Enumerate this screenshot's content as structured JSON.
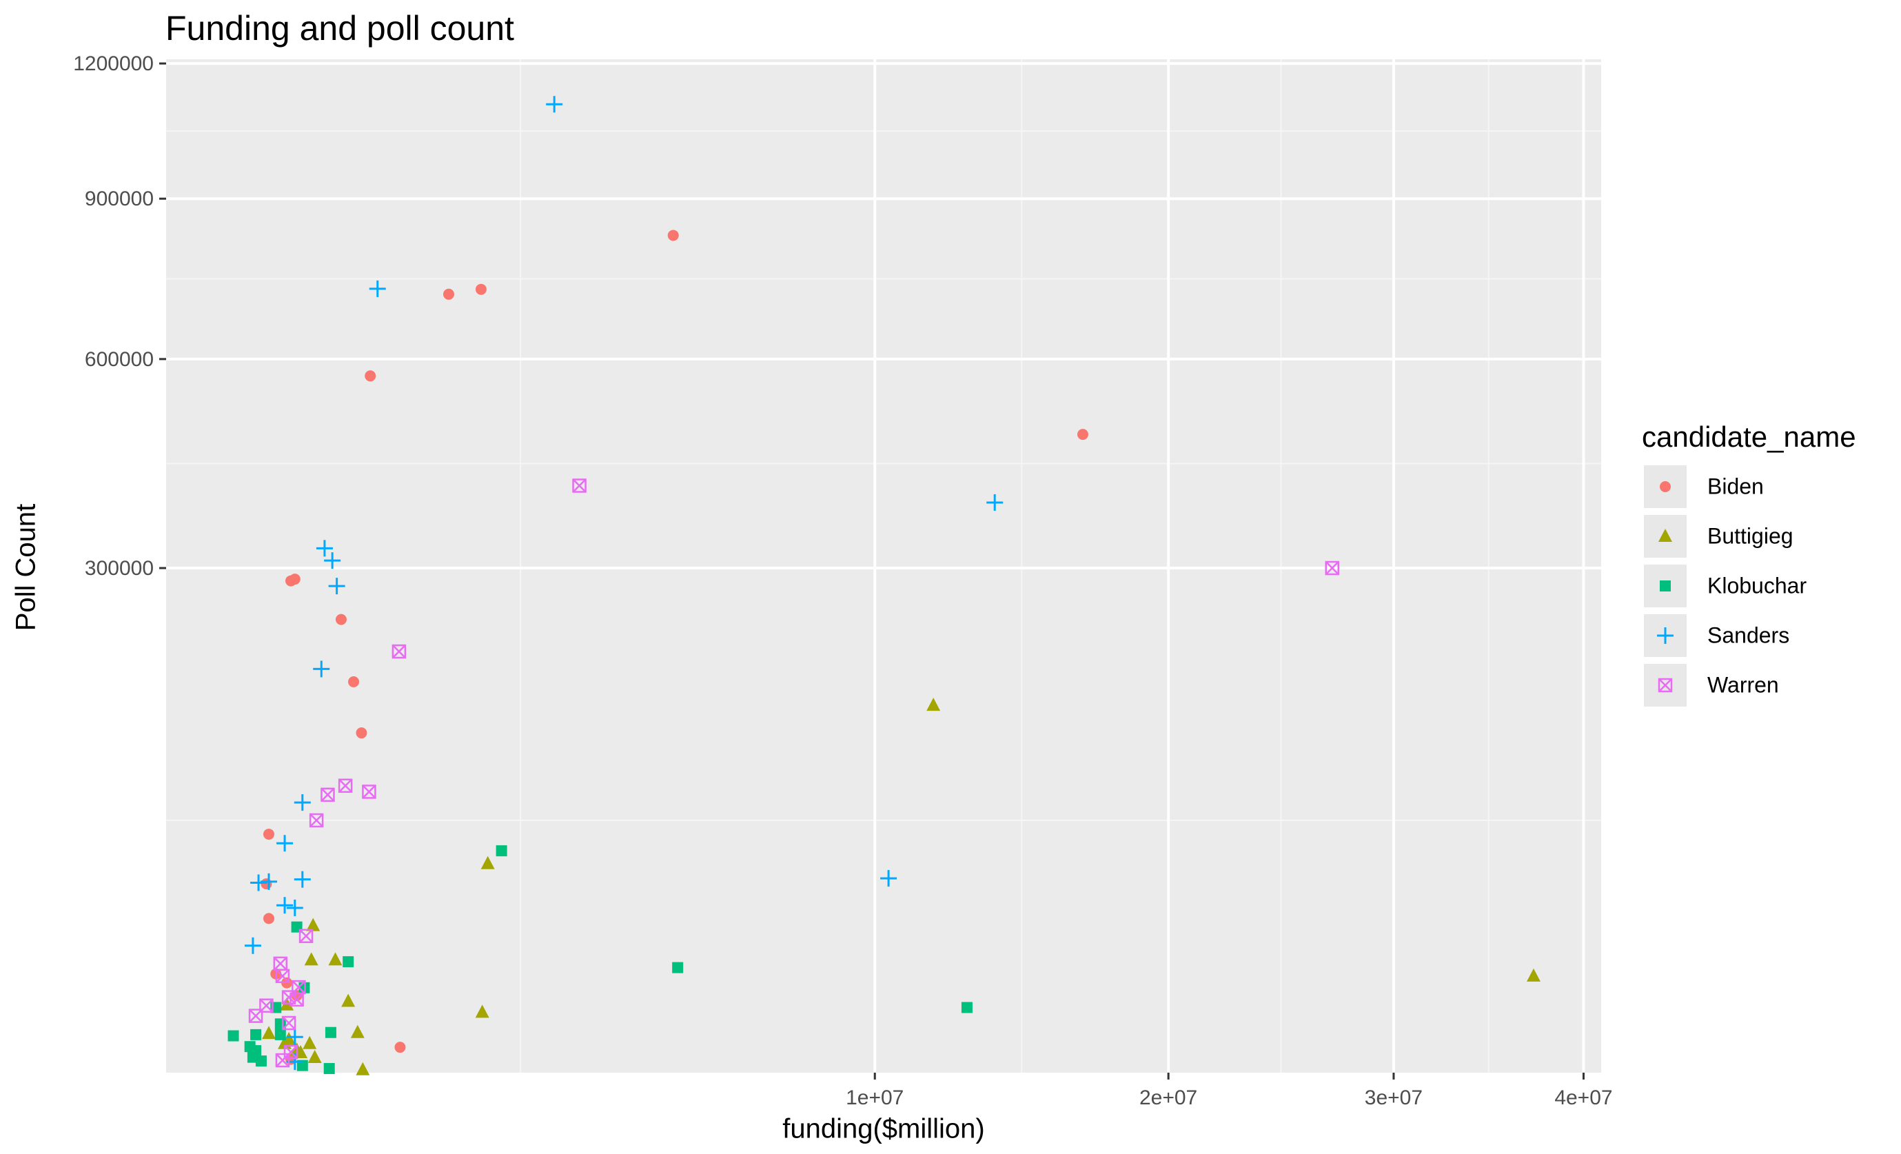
{
  "chart_data": {
    "type": "scatter",
    "title": "Funding and poll count",
    "xlabel": "funding($million)",
    "ylabel": "Poll Count",
    "x_scale": "sqrt",
    "y_scale": "sqrt",
    "xlim": [
      0,
      41000000
    ],
    "ylim": [
      0,
      1210000
    ],
    "x_ticks": [
      {
        "value": 10000000,
        "label": "1e+07"
      },
      {
        "value": 20000000,
        "label": "2e+07"
      },
      {
        "value": 30000000,
        "label": "3e+07"
      },
      {
        "value": 40000000,
        "label": "4e+07"
      }
    ],
    "y_ticks": [
      {
        "value": 300000,
        "label": "300000"
      },
      {
        "value": 600000,
        "label": "600000"
      },
      {
        "value": 900000,
        "label": "900000"
      },
      {
        "value": 1200000,
        "label": "1200000"
      }
    ],
    "grid": true,
    "background": "#ebebeb",
    "legend": {
      "title": "candidate_name",
      "position": "right"
    },
    "series": [
      {
        "name": "Biden",
        "color": "#F8766D",
        "shape": "circle",
        "points": [
          [
            5120000,
            826000
          ],
          [
            16730000,
            480000
          ],
          [
            1975000,
            723000
          ],
          [
            1590000,
            714000
          ],
          [
            830000,
            572000
          ],
          [
            330000,
            287000
          ],
          [
            310000,
            285000
          ],
          [
            610000,
            242000
          ],
          [
            700000,
            180000
          ],
          [
            760000,
            136000
          ],
          [
            210000,
            67000
          ],
          [
            200000,
            42000
          ],
          [
            210000,
            28000
          ],
          [
            240000,
            11500
          ],
          [
            290000,
            9500
          ],
          [
            340000,
            7000
          ],
          [
            1090000,
            760
          ],
          [
            310000,
            210
          ]
        ]
      },
      {
        "name": "Buttigieg",
        "color": "#A3A500",
        "shape": "triangle",
        "points": [
          [
            11720000,
            159000
          ],
          [
            37230000,
            11000
          ],
          [
            2060000,
            51500
          ],
          [
            1990000,
            4300
          ],
          [
            430000,
            25500
          ],
          [
            420000,
            15000
          ],
          [
            570000,
            15000
          ],
          [
            660000,
            6000
          ],
          [
            290000,
            5400
          ],
          [
            730000,
            1900
          ],
          [
            210000,
            1800
          ],
          [
            300000,
            1300
          ],
          [
            280000,
            1000
          ],
          [
            410000,
            1000
          ],
          [
            340000,
            600
          ],
          [
            360000,
            470
          ],
          [
            440000,
            270
          ],
          [
            770000,
            10
          ]
        ]
      },
      {
        "name": "Klobuchar",
        "color": "#00BF7D",
        "shape": "square",
        "points": [
          [
            2240000,
            58000
          ],
          [
            5210000,
            13000
          ],
          [
            12770000,
            5000
          ],
          [
            660000,
            14500
          ],
          [
            340000,
            25000
          ],
          [
            380000,
            8500
          ],
          [
            240000,
            5000
          ],
          [
            260000,
            2800
          ],
          [
            540000,
            1900
          ],
          [
            90000,
            1600
          ],
          [
            160000,
            1700
          ],
          [
            260000,
            1700
          ],
          [
            140000,
            800
          ],
          [
            160000,
            570
          ],
          [
            150000,
            280
          ],
          [
            180000,
            160
          ],
          [
            370000,
            60
          ],
          [
            530000,
            20
          ]
        ]
      },
      {
        "name": "Sanders",
        "color": "#00A9FF",
        "shape": "plus",
        "points": [
          [
            3000000,
            1105000
          ],
          [
            13670000,
            383000
          ],
          [
            10390000,
            44500
          ],
          [
            890000,
            724000
          ],
          [
            500000,
            324000
          ],
          [
            550000,
            309000
          ],
          [
            580000,
            279000
          ],
          [
            480000,
            192000
          ],
          [
            370000,
            86000
          ],
          [
            280000,
            62000
          ],
          [
            370000,
            44000
          ],
          [
            210000,
            43000
          ],
          [
            170000,
            42500
          ],
          [
            280000,
            33000
          ],
          [
            330000,
            32000
          ],
          [
            150000,
            19000
          ],
          [
            330000,
            1500
          ],
          [
            330000,
            140
          ]
        ]
      },
      {
        "name": "Warren",
        "color": "#E76BF3",
        "shape": "square-cross",
        "points": [
          [
            3400000,
            406000
          ],
          [
            27070000,
            300000
          ],
          [
            1080000,
            209000
          ],
          [
            820000,
            93000
          ],
          [
            640000,
            97000
          ],
          [
            520000,
            91000
          ],
          [
            450000,
            75000
          ],
          [
            390000,
            22000
          ],
          [
            260000,
            14000
          ],
          [
            270000,
            11000
          ],
          [
            350000,
            8600
          ],
          [
            340000,
            6300
          ],
          [
            300000,
            6700
          ],
          [
            200000,
            5300
          ],
          [
            160000,
            3800
          ],
          [
            300000,
            2900
          ],
          [
            310000,
            500
          ],
          [
            270000,
            180
          ]
        ]
      }
    ]
  }
}
